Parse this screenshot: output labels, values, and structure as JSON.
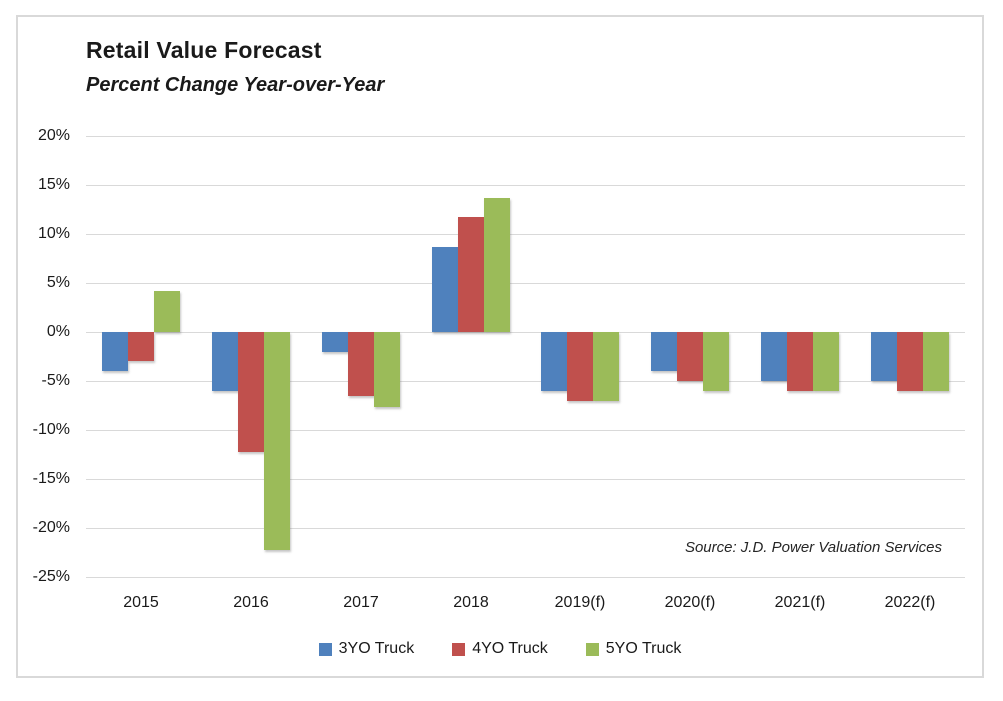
{
  "chart_data": {
    "type": "bar",
    "title": "Retail Value Forecast",
    "subtitle": "Percent Change Year-over-Year",
    "source_note": "Source: J.D. Power Valuation Services",
    "categories": [
      "2015",
      "2016",
      "2017",
      "2018",
      "2019(f)",
      "2020(f)",
      "2021(f)",
      "2022(f)"
    ],
    "series": [
      {
        "name": "3YO Truck",
        "color": "#4F81BD",
        "values": [
          -4,
          -6,
          -2,
          8.7,
          -6,
          -4,
          -5,
          -5
        ]
      },
      {
        "name": "4YO Truck",
        "color": "#C0504D",
        "values": [
          -3,
          -12.2,
          -6.5,
          11.7,
          -7,
          -5,
          -6,
          -6
        ]
      },
      {
        "name": "5YO Truck",
        "color": "#9BBB59",
        "values": [
          4.2,
          -22.2,
          -7.7,
          13.7,
          -7,
          -6,
          -6,
          -6
        ]
      }
    ],
    "y_axis": {
      "min": -25,
      "max": 20,
      "step": 5,
      "tick_labels": [
        "20%",
        "15%",
        "10%",
        "5%",
        "0%",
        "-5%",
        "-10%",
        "-15%",
        "-20%",
        "-25%"
      ]
    },
    "ylim": [
      -25,
      20
    ],
    "grid": true,
    "legend_position": "bottom"
  },
  "colors": {
    "bar_blue": "#4F81BD",
    "bar_red": "#C0504D",
    "bar_green": "#9BBB59",
    "gridline": "#D9D9D9",
    "frame_border": "#D9D9D9",
    "text": "#1A1A1A"
  }
}
